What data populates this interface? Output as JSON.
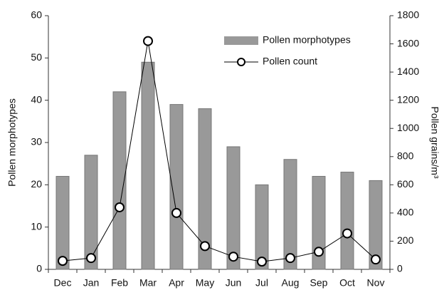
{
  "chart_data": {
    "type": "bar-line",
    "categories": [
      "Dec",
      "Jan",
      "Feb",
      "Mar",
      "Apr",
      "May",
      "Jun",
      "Jul",
      "Aug",
      "Sep",
      "Oct",
      "Nov"
    ],
    "ylabel": "Pollen morphotypes",
    "y2label": "Pollen grains/m³",
    "ylim": [
      0,
      60
    ],
    "yticks": [
      0,
      10,
      20,
      30,
      40,
      50,
      60
    ],
    "y2lim": [
      0,
      1800
    ],
    "y2ticks": [
      0,
      200,
      400,
      600,
      800,
      1000,
      1200,
      1400,
      1600,
      1800
    ],
    "legend": "upper right",
    "series": [
      {
        "name": "Pollen morphotypes",
        "type": "bar",
        "color": "#999999",
        "values": [
          22,
          27,
          42,
          49,
          39,
          38,
          29,
          20,
          26,
          22,
          23,
          21
        ]
      },
      {
        "name": "Pollen count",
        "type": "line",
        "axis": "y2",
        "color": "#000000",
        "values": [
          60,
          80,
          440,
          1620,
          400,
          165,
          90,
          55,
          80,
          125,
          255,
          70
        ]
      }
    ]
  }
}
